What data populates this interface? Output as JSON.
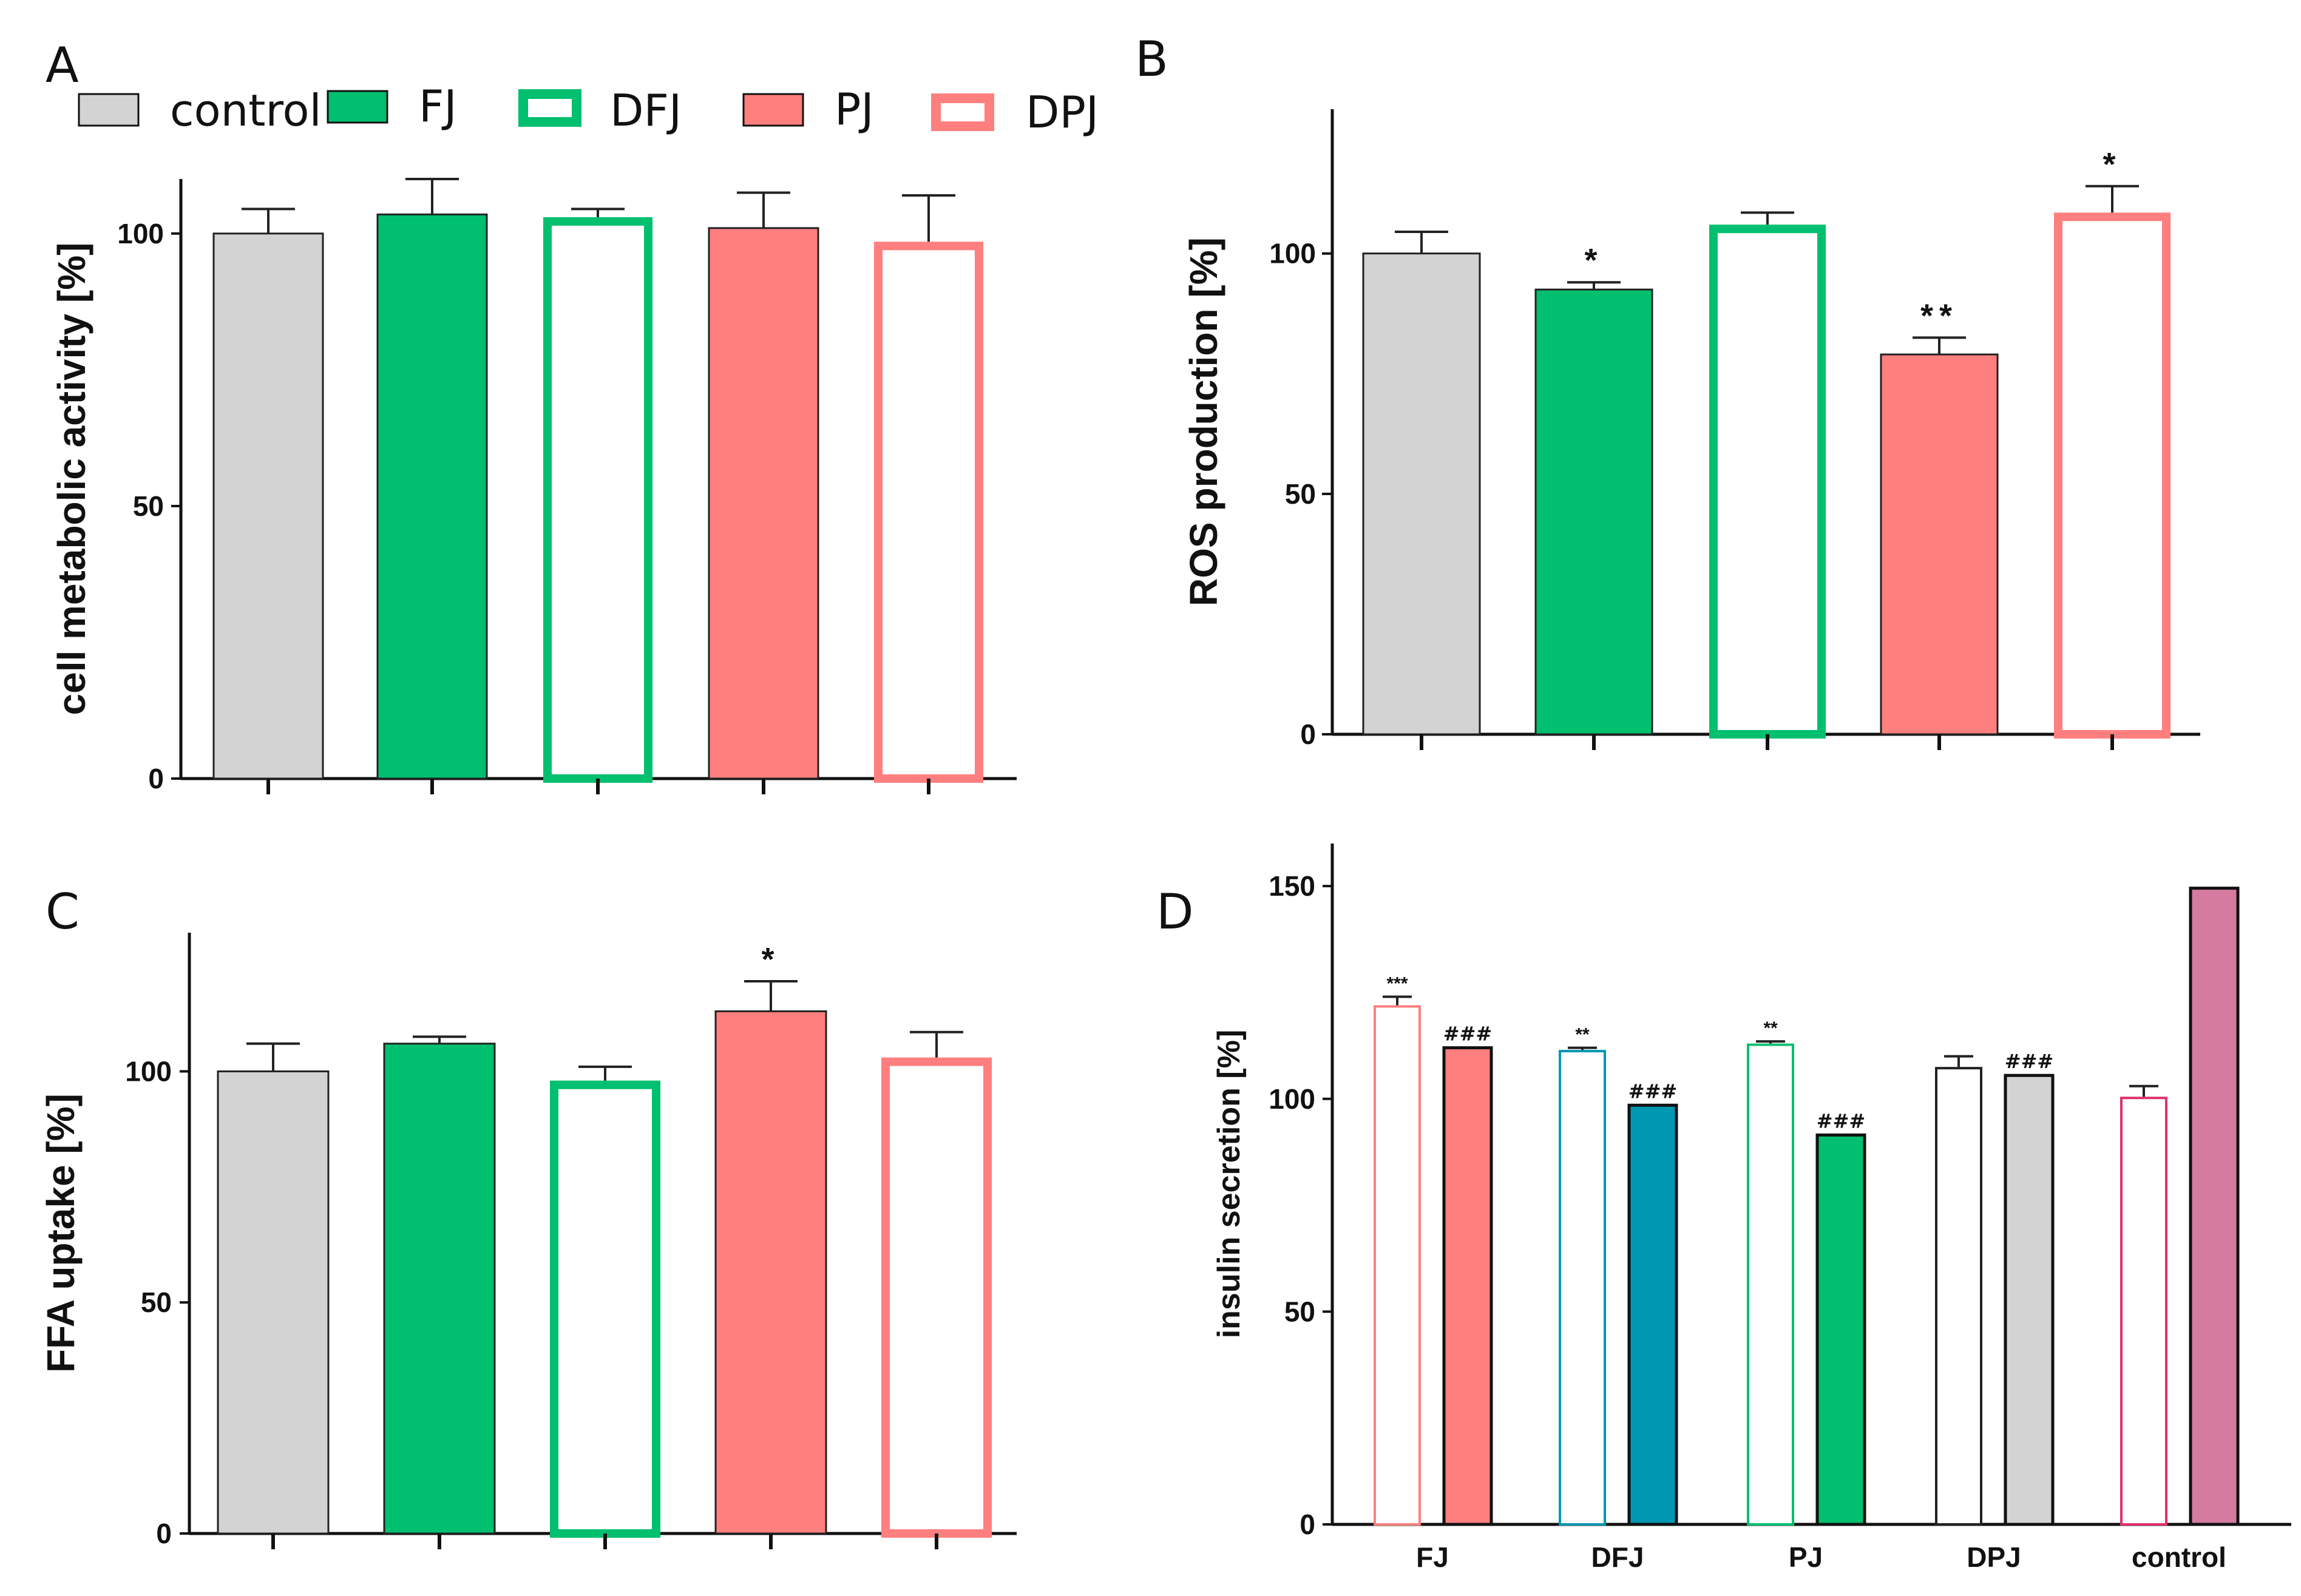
{
  "colors": {
    "gray": "#d3d3d3",
    "green": "#00bf6f",
    "salmon": "#ff7f7f",
    "teal": "#0097b2",
    "mauve": "#d67ba0",
    "crimson": "#e0306a",
    "axis": "#111111"
  },
  "legend": {
    "items": [
      {
        "label": "control",
        "style": "filled",
        "color": "#d3d3d3"
      },
      {
        "label": "FJ",
        "style": "filled",
        "color": "#00bf6f"
      },
      {
        "label": "DFJ",
        "style": "outline",
        "color": "#00bf6f"
      },
      {
        "label": "PJ",
        "style": "filled",
        "color": "#ff7f7f"
      },
      {
        "label": "DPJ",
        "style": "outline",
        "color": "#ff7f7f"
      }
    ]
  },
  "chart_data": [
    {
      "panel": "A",
      "type": "bar",
      "ylabel": "cell metabolic activity [%]",
      "ylim": [
        0,
        110
      ],
      "yticks": [
        0,
        50,
        100
      ],
      "categories": [
        "control",
        "FJ",
        "DFJ",
        "PJ",
        "DPJ"
      ],
      "values": [
        100,
        103.5,
        103,
        101,
        98.5
      ],
      "errors": [
        4.5,
        6.5,
        1.5,
        6.5,
        8.5
      ],
      "annotations": [
        "",
        "",
        "",
        "",
        ""
      ]
    },
    {
      "panel": "B",
      "type": "bar",
      "ylabel": "ROS production [%]",
      "ylim": [
        0,
        130
      ],
      "yticks": [
        0,
        50,
        100
      ],
      "categories": [
        "control",
        "FJ",
        "DFJ",
        "PJ",
        "DPJ"
      ],
      "values": [
        100,
        92.5,
        106,
        79,
        108.5
      ],
      "errors": [
        4.5,
        1.5,
        2.5,
        3.5,
        5.5
      ],
      "annotations": [
        "",
        "*",
        "",
        "**",
        "*"
      ]
    },
    {
      "panel": "C",
      "type": "bar",
      "ylabel": "FFA uptake [%]",
      "ylim": [
        0,
        130
      ],
      "yticks": [
        0,
        50,
        100
      ],
      "categories": [
        "control",
        "FJ",
        "DFJ",
        "PJ",
        "DPJ"
      ],
      "values": [
        100,
        106,
        98,
        113,
        103
      ],
      "errors": [
        6,
        1.5,
        3,
        6.5,
        5.5
      ],
      "annotations": [
        "",
        "",
        "",
        "*",
        ""
      ]
    },
    {
      "panel": "D",
      "type": "bar",
      "ylabel": "insulin secretion [%]",
      "ylim": [
        0,
        160
      ],
      "yticks": [
        0,
        50,
        100,
        150
      ],
      "categories": [
        "FJ",
        "DFJ",
        "PJ",
        "DPJ",
        "control"
      ],
      "series": [
        {
          "values": [
            122,
            111.5,
            113,
            107.5,
            100.5
          ],
          "errors": [
            2,
            0.5,
            0.5,
            2.5,
            2.5
          ],
          "annotations": [
            "***",
            "**",
            "**",
            "",
            ""
          ]
        },
        {
          "values": [
            112,
            98.5,
            91.5,
            105.5,
            149.5
          ],
          "errors": [
            0,
            0,
            0,
            0,
            0
          ],
          "annotations": [
            "###",
            "###",
            "###",
            "###",
            ""
          ]
        }
      ]
    }
  ]
}
